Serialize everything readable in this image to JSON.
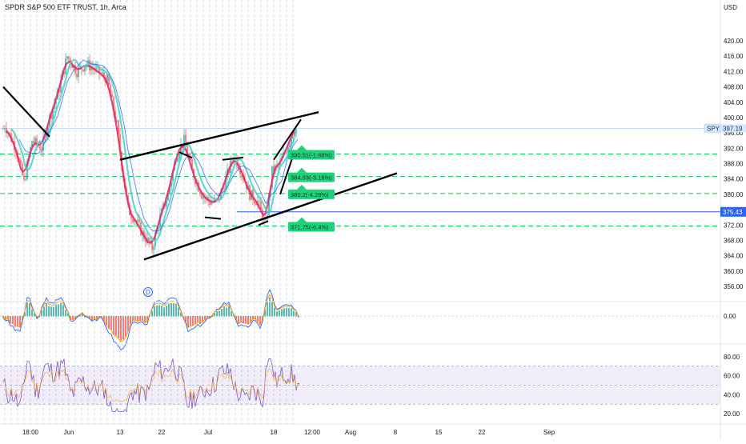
{
  "header": {
    "title": "SPDR S&P 500 ETF TRUST, 1h, Arca"
  },
  "price_axis": {
    "unit": "USD",
    "ticks": [
      "420.00",
      "416.00",
      "412.00",
      "408.00",
      "404.00",
      "400.00",
      "396.00",
      "392.00",
      "388.00",
      "384.00",
      "380.00",
      "376.00",
      "372.00",
      "368.00",
      "364.00",
      "360.00",
      "356.00"
    ],
    "tick_values": [
      420,
      416,
      412,
      408,
      404,
      400,
      396,
      392,
      388,
      384,
      380,
      376,
      372,
      368,
      364,
      360,
      356
    ]
  },
  "symbol_tag": {
    "symbol": "SPY",
    "price": "397.19",
    "value": 397.19
  },
  "horizontal_line": {
    "label": "375.43",
    "value": 375.43,
    "color": "#2962ff"
  },
  "targets": [
    {
      "label": "390.51(-1.68%)",
      "value": 390.51
    },
    {
      "label": "384.63(-3.16%)",
      "value": 384.63
    },
    {
      "label": "380.2(-4.28%)",
      "value": 380.2
    },
    {
      "label": "371.75(-6.4%)",
      "value": 371.75
    }
  ],
  "macd_axis": {
    "ticks": [
      "0.00"
    ]
  },
  "rsi_axis": {
    "ticks": [
      "80.00",
      "60.00",
      "40.00",
      "20.00"
    ],
    "tick_values": [
      80,
      60,
      40,
      20
    ],
    "band": [
      30,
      70
    ]
  },
  "time_axis": {
    "labels": [
      "18:00",
      "Jun",
      "13",
      "22",
      "Jul",
      "18",
      "12:00",
      "Aug",
      "8",
      "15",
      "22",
      "Sep"
    ]
  },
  "markers": {
    "dividend": "D"
  },
  "colors": {
    "up": "#26a69a",
    "down": "#ef5350",
    "accent": "#2962ff",
    "target_fill": "#1fd17a",
    "target_line": "#00c853",
    "trendline": "#000000",
    "pink_line": "#e91e63",
    "teal_line": "#4dd0c4",
    "rsi_line": "#7e57c2"
  }
}
